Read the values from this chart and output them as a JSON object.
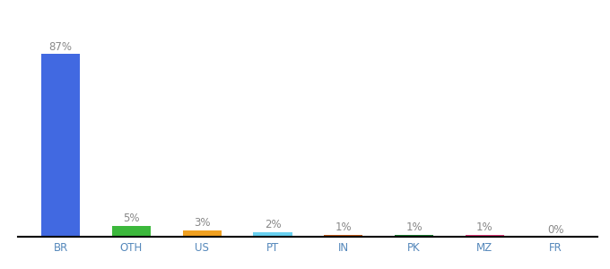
{
  "categories": [
    "BR",
    "OTH",
    "US",
    "PT",
    "IN",
    "PK",
    "MZ",
    "FR"
  ],
  "values": [
    87,
    5,
    3,
    2,
    1,
    1,
    1,
    0
  ],
  "labels": [
    "87%",
    "5%",
    "3%",
    "2%",
    "1%",
    "1%",
    "1%",
    "0%"
  ],
  "bar_colors": [
    "#4169e1",
    "#3cb83c",
    "#f0a020",
    "#68d0f0",
    "#c05818",
    "#1a7a30",
    "#e03878",
    "#b03030"
  ],
  "title": "",
  "ylim": [
    0,
    100
  ],
  "background_color": "#ffffff",
  "label_fontsize": 8.5,
  "tick_fontsize": 8.5,
  "label_color": "#888888",
  "tick_color": "#5588bb"
}
